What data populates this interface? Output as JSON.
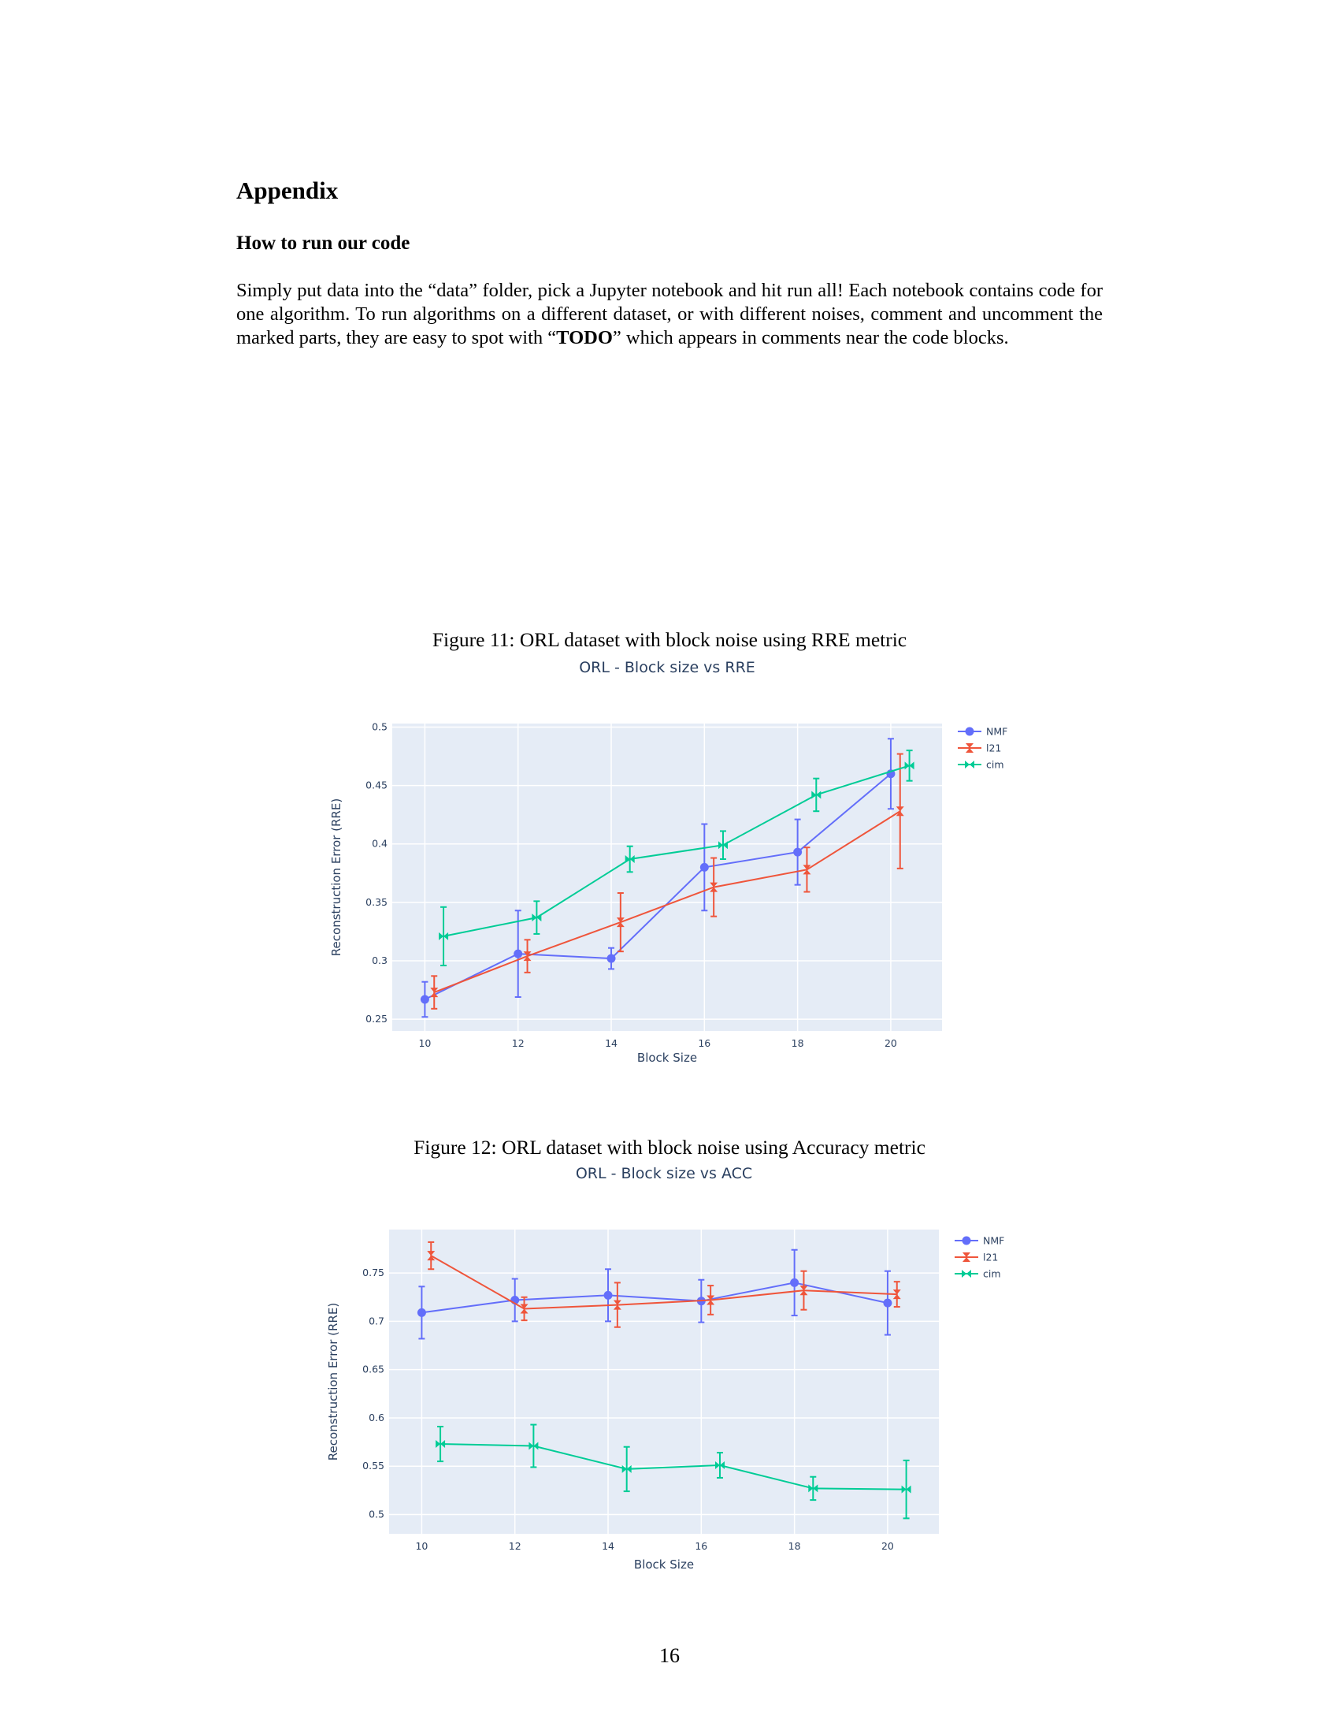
{
  "heading": "Appendix",
  "subheading": "How to run our code",
  "paragraph": {
    "before": "Simply put data into the “data” folder, pick a Jupyter notebook and hit run all!  Each notebook contains code for one algorithm. To run algorithms on a different dataset, or with different noises, comment and uncomment the marked parts, they are easy to spot with “",
    "bold": "TODO",
    "after": "” which appears in comments near the code blocks."
  },
  "figure11_caption": "Figure 11: ORL dataset with block noise using RRE metric",
  "figure12_caption": "Figure 12: ORL dataset with block noise using Accuracy metric",
  "page_number": "16",
  "colors": {
    "NMF": "#636efa",
    "l21": "#ef553b",
    "cim": "#00cc96",
    "plot_bg": "#e5ecf6",
    "text": "#2a3f5f"
  },
  "chart_data": [
    {
      "type": "line",
      "title": "ORL - Block size vs RRE",
      "xlabel": "Block Size",
      "ylabel": "Reconstruction Error (RRE)",
      "xlim": [
        9.3,
        21.1
      ],
      "ylim": [
        0.24,
        0.503
      ],
      "x_ticks": [
        10,
        12,
        14,
        16,
        18,
        20
      ],
      "x_tick_labels": [
        "10",
        "12",
        "14",
        "16",
        "18",
        "20"
      ],
      "y_ticks": [
        0.25,
        0.3,
        0.35,
        0.4,
        0.45,
        0.5
      ],
      "y_tick_labels": [
        "0.25",
        "0.3",
        "0.35",
        "0.4",
        "0.45",
        "0.5"
      ],
      "legend_position": "top-right",
      "series": [
        {
          "name": "NMF",
          "marker": "circle",
          "x": [
            10,
            12,
            14,
            16,
            18,
            20
          ],
          "y": [
            0.267,
            0.306,
            0.302,
            0.38,
            0.393,
            0.46
          ],
          "err": [
            0.015,
            0.037,
            0.009,
            0.037,
            0.028,
            0.03
          ]
        },
        {
          "name": "l21",
          "marker": "bowtie",
          "x": [
            10.2,
            12.2,
            14.2,
            16.2,
            18.2,
            20.2
          ],
          "y": [
            0.273,
            0.304,
            0.333,
            0.363,
            0.378,
            0.428
          ],
          "err": [
            0.014,
            0.014,
            0.025,
            0.025,
            0.019,
            0.049
          ]
        },
        {
          "name": "cim",
          "marker": "hourglass",
          "x": [
            10.4,
            12.4,
            14.4,
            16.4,
            18.4,
            20.4
          ],
          "y": [
            0.321,
            0.337,
            0.387,
            0.399,
            0.442,
            0.467
          ],
          "err": [
            0.025,
            0.014,
            0.011,
            0.012,
            0.014,
            0.013
          ]
        }
      ]
    },
    {
      "type": "line",
      "title": "ORL - Block size vs ACC",
      "xlabel": "Block Size",
      "ylabel": "Reconstruction Error (RRE)",
      "xlim": [
        9.3,
        21.1
      ],
      "ylim": [
        0.48,
        0.795
      ],
      "x_ticks": [
        10,
        12,
        14,
        16,
        18,
        20
      ],
      "x_tick_labels": [
        "10",
        "12",
        "14",
        "16",
        "18",
        "20"
      ],
      "y_ticks": [
        0.5,
        0.55,
        0.6,
        0.65,
        0.7,
        0.75
      ],
      "y_tick_labels": [
        "0.5",
        "0.55",
        "0.6",
        "0.65",
        "0.7",
        "0.75"
      ],
      "legend_position": "top-right",
      "series": [
        {
          "name": "NMF",
          "marker": "circle",
          "x": [
            10,
            12,
            14,
            16,
            18,
            20
          ],
          "y": [
            0.709,
            0.722,
            0.727,
            0.721,
            0.74,
            0.719
          ],
          "err": [
            0.027,
            0.022,
            0.027,
            0.022,
            0.034,
            0.033
          ]
        },
        {
          "name": "l21",
          "marker": "bowtie",
          "x": [
            10.2,
            12.2,
            14.2,
            16.2,
            18.2,
            20.2
          ],
          "y": [
            0.768,
            0.713,
            0.717,
            0.722,
            0.732,
            0.728
          ],
          "err": [
            0.014,
            0.012,
            0.023,
            0.015,
            0.02,
            0.013
          ]
        },
        {
          "name": "cim",
          "marker": "hourglass",
          "x": [
            10.4,
            12.4,
            14.4,
            16.4,
            18.4,
            20.4
          ],
          "y": [
            0.573,
            0.571,
            0.547,
            0.551,
            0.527,
            0.526
          ],
          "err": [
            0.018,
            0.022,
            0.023,
            0.013,
            0.012,
            0.03
          ]
        }
      ]
    }
  ]
}
